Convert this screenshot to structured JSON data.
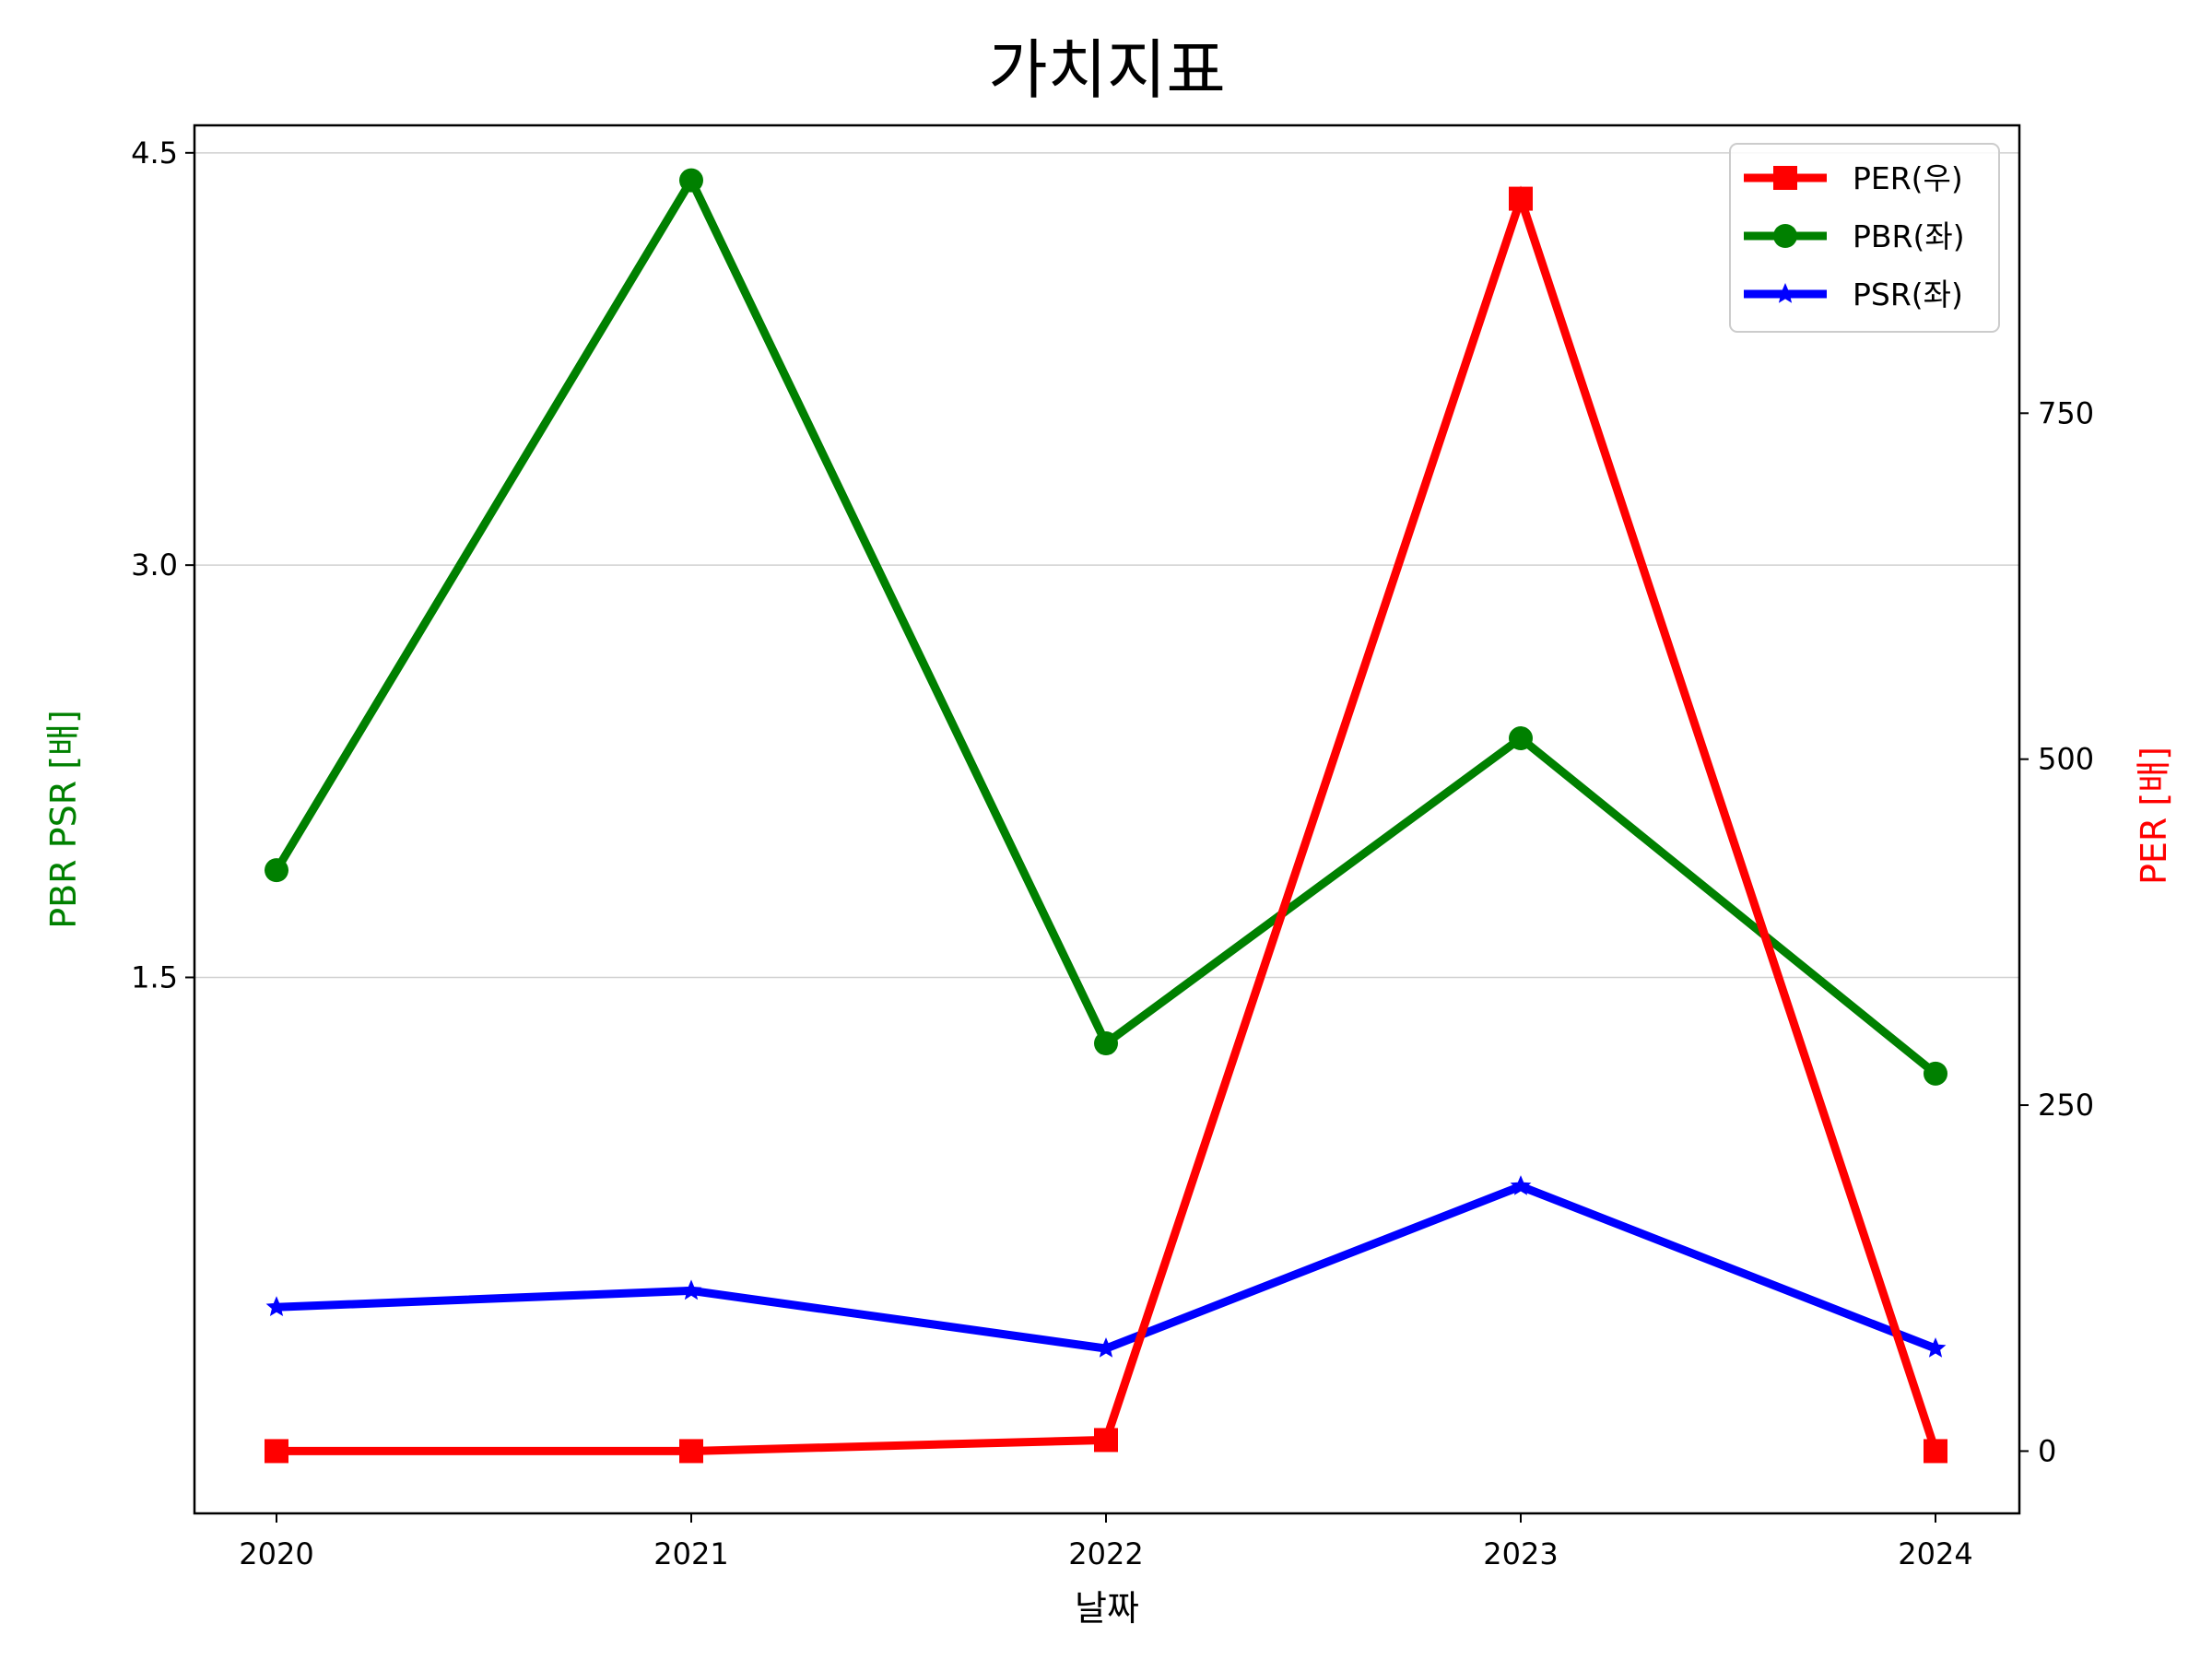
{
  "chart_data": {
    "type": "line",
    "title": "가치지표",
    "xlabel": "날짜",
    "ylabel_left": "PBR PSR [배]",
    "ylabel_right": "PER [배]",
    "ylabel_left_color": "#008000",
    "ylabel_right_color": "#ff0000",
    "categories": [
      "2020",
      "2021",
      "2022",
      "2023",
      "2024"
    ],
    "left_axis": {
      "ylim": [
        -0.45,
        4.6
      ],
      "ticks": [
        1.5,
        3.0,
        4.5
      ],
      "tick_labels": [
        "1.5",
        "3.0",
        "4.5"
      ]
    },
    "right_axis": {
      "ylim": [
        -45,
        958
      ],
      "ticks": [
        0,
        250,
        500,
        750
      ],
      "tick_labels": [
        "0",
        "250",
        "500",
        "750"
      ]
    },
    "grid": "horizontal (left axis)",
    "legend_position": "upper right",
    "series": [
      {
        "name": "PER(우)",
        "axis": "right",
        "color": "#ff0000",
        "marker": "square",
        "values": [
          0,
          0,
          8,
          905,
          0
        ]
      },
      {
        "name": "PBR(좌)",
        "axis": "left",
        "color": "#008000",
        "marker": "circle",
        "values": [
          1.89,
          4.4,
          1.26,
          2.37,
          1.15
        ]
      },
      {
        "name": "PSR(좌)",
        "axis": "left",
        "color": "#0000ff",
        "marker": "star",
        "values": [
          0.3,
          0.36,
          0.15,
          0.74,
          0.15
        ]
      }
    ]
  }
}
